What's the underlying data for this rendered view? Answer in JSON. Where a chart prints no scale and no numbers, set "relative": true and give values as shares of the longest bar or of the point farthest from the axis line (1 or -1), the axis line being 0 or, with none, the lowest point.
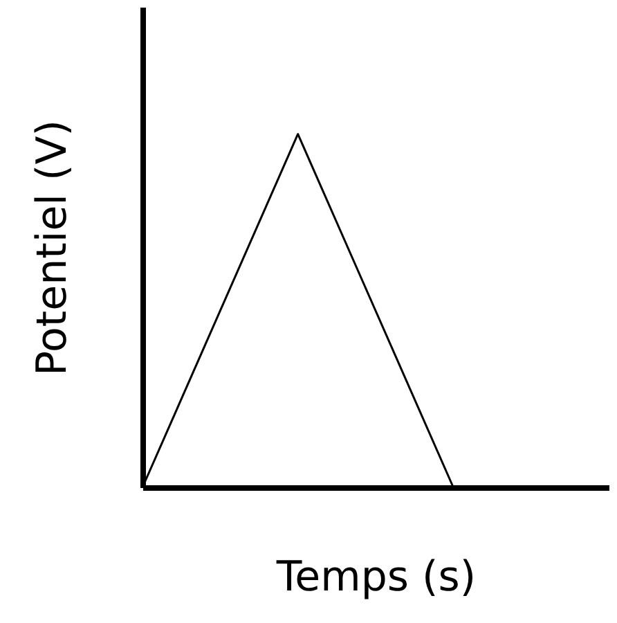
{
  "chart_data": {
    "type": "line",
    "xlabel": "Temps (s)",
    "ylabel": "Potentiel (V)",
    "relative": true,
    "categories": [
      null,
      null,
      null
    ],
    "series": [
      {
        "color": "#000000",
        "values": [
          0,
          1,
          0
        ]
      }
    ],
    "grid": false,
    "marker": "none",
    "line_style": "solid"
  }
}
